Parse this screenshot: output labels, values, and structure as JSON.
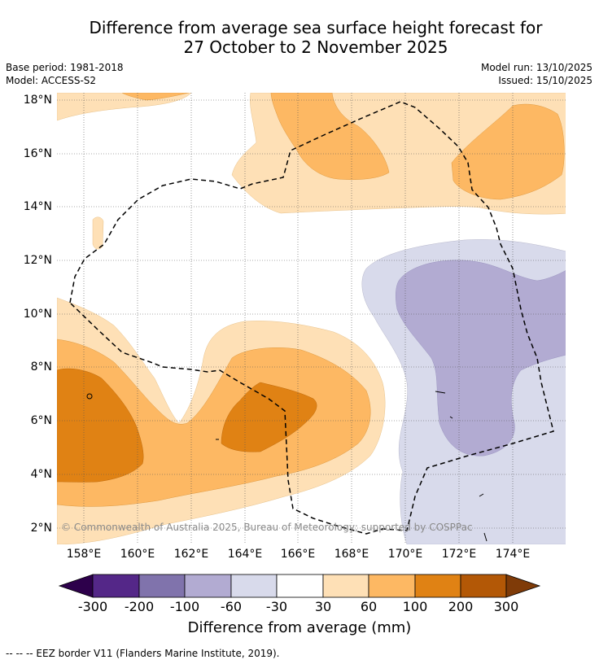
{
  "title_line1": "Difference from average sea surface height forecast for",
  "title_line2": "27 October to 2 November 2025",
  "base_period": "Base period: 1981-2018",
  "model": "Model: ACCESS-S2",
  "model_run": "Model run: 13/10/2025",
  "issued": "Issued: 15/10/2025",
  "lat_labels": [
    "18°N",
    "16°N",
    "14°N",
    "12°N",
    "10°N",
    "8°N",
    "6°N",
    "4°N",
    "2°N"
  ],
  "lon_labels": [
    "158°E",
    "160°E",
    "162°E",
    "164°E",
    "166°E",
    "168°E",
    "170°E",
    "172°E",
    "174°E"
  ],
  "copyright": "© Commonwealth of Australia 2025, Bureau of Meteorology; supported by COSPPac",
  "colorbar": {
    "ticks": [
      "-300",
      "-200",
      "-100",
      "-60",
      "-30",
      "30",
      "60",
      "100",
      "200",
      "300"
    ],
    "colors": [
      "#2d004b",
      "#542788",
      "#8073ac",
      "#b2abd2",
      "#d8daeb",
      "#ffffff",
      "#fee0b6",
      "#fdb863",
      "#e08214",
      "#b35806",
      "#7f3b08"
    ],
    "label": "Difference from average (mm)"
  },
  "legend_footnote": "--  --  -- EEZ border V11 (Flanders Marine Institute, 2019).",
  "icons": {
    "north_arrow": "none"
  }
}
